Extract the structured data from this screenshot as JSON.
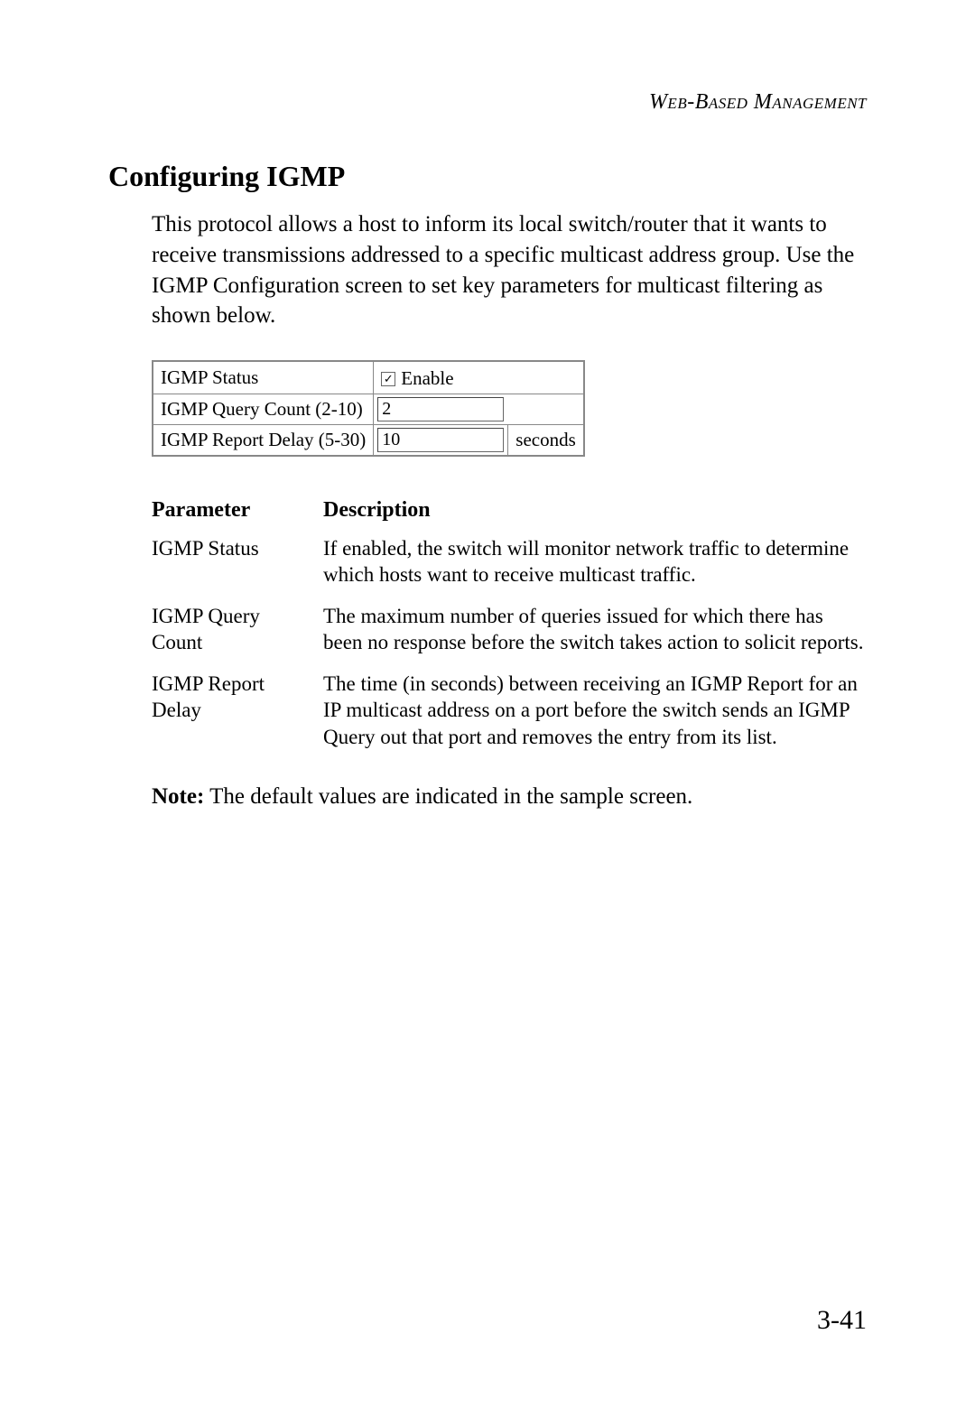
{
  "header": "Web-Based Management",
  "section_title": "Configuring IGMP",
  "intro": "This protocol allows a host to inform its local switch/router that it wants to receive transmissions addressed to a specific multicast address group. Use the IGMP Configuration screen to set key parameters for multicast filtering as shown below.",
  "config": {
    "rows": [
      {
        "label": "IGMP Status",
        "type": "checkbox",
        "checked": true,
        "checkbox_label": "Enable"
      },
      {
        "label": "IGMP Query Count (2-10)",
        "type": "input",
        "value": "2",
        "unit": ""
      },
      {
        "label": "IGMP Report Delay (5-30)",
        "type": "input",
        "value": "10",
        "unit": "seconds"
      }
    ]
  },
  "param_table": {
    "headers": {
      "param": "Parameter",
      "desc": "Description"
    },
    "rows": [
      {
        "param": "IGMP Status",
        "desc": "If enabled, the switch will monitor network traffic to determine which hosts want to receive multicast traffic."
      },
      {
        "param": "IGMP Query Count",
        "desc": "The maximum number of queries issued for which there has been no response before the switch takes action to solicit reports."
      },
      {
        "param": "IGMP Report Delay",
        "desc": "The time (in seconds) between receiving an IGMP Report for an IP multicast address on a port before the switch sends an IGMP Query out that port and removes the entry from its list."
      }
    ]
  },
  "note_label": "Note:",
  "note_text": "The default values are indicated in the sample screen.",
  "page_number": "3-41",
  "colors": {
    "text": "#000000",
    "background": "#ffffff",
    "table_border": "#888888",
    "input_border": "#666666"
  },
  "typography": {
    "body_family": "Garamond, Georgia, serif",
    "section_title_size": 32,
    "body_size": 25,
    "table_font_size": 21,
    "param_font_size": 23,
    "page_number_size": 30
  }
}
